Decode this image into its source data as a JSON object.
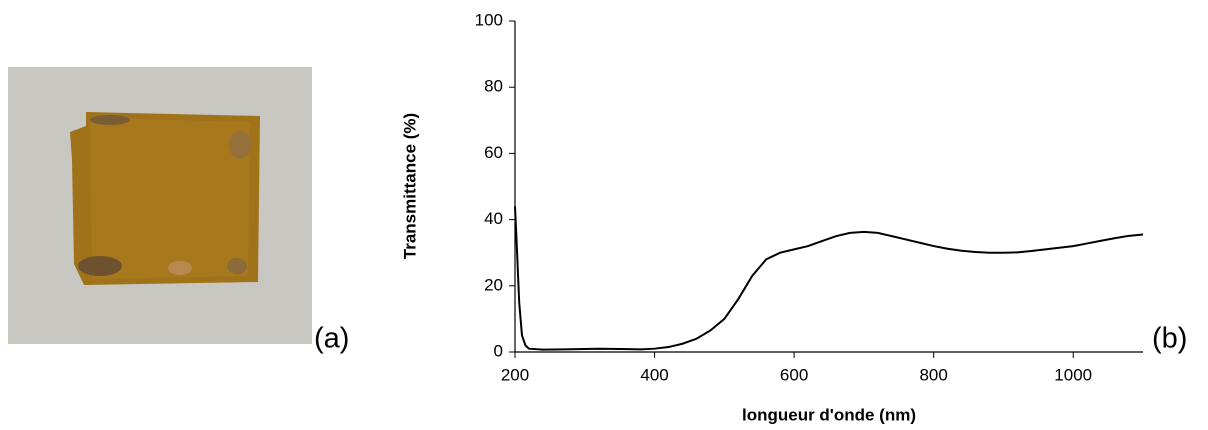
{
  "panel_labels": [
    "(a)",
    "(b)"
  ],
  "chart_data": {
    "type": "line",
    "xlabel": "longueur d'onde (nm)",
    "ylabel": "Transmittance (%)",
    "x": [
      200,
      203,
      206,
      210,
      215,
      220,
      240,
      270,
      300,
      320,
      350,
      380,
      400,
      420,
      440,
      460,
      480,
      500,
      520,
      540,
      560,
      580,
      600,
      620,
      640,
      660,
      680,
      700,
      720,
      740,
      760,
      780,
      800,
      820,
      840,
      860,
      880,
      900,
      920,
      940,
      960,
      980,
      1000,
      1020,
      1040,
      1060,
      1080,
      1100
    ],
    "values": [
      44,
      30,
      15,
      5,
      2,
      1,
      0.7,
      0.8,
      0.9,
      1.0,
      0.9,
      0.8,
      1,
      1.5,
      2.5,
      4,
      6.5,
      10,
      16,
      23,
      28,
      30,
      31,
      32,
      33.5,
      35,
      36,
      36.3,
      36,
      35,
      34,
      33,
      32,
      31.2,
      30.6,
      30.2,
      30,
      30,
      30.1,
      30.5,
      31,
      31.5,
      32,
      32.8,
      33.6,
      34.4,
      35.1,
      35.5
    ],
    "color": "#000000",
    "xlim": [
      200,
      1100
    ],
    "xticks": [
      200,
      400,
      600,
      800,
      1000
    ],
    "ylim": [
      0,
      100
    ],
    "yticks": [
      0,
      20,
      40,
      60,
      80,
      100
    ],
    "grid": false
  }
}
